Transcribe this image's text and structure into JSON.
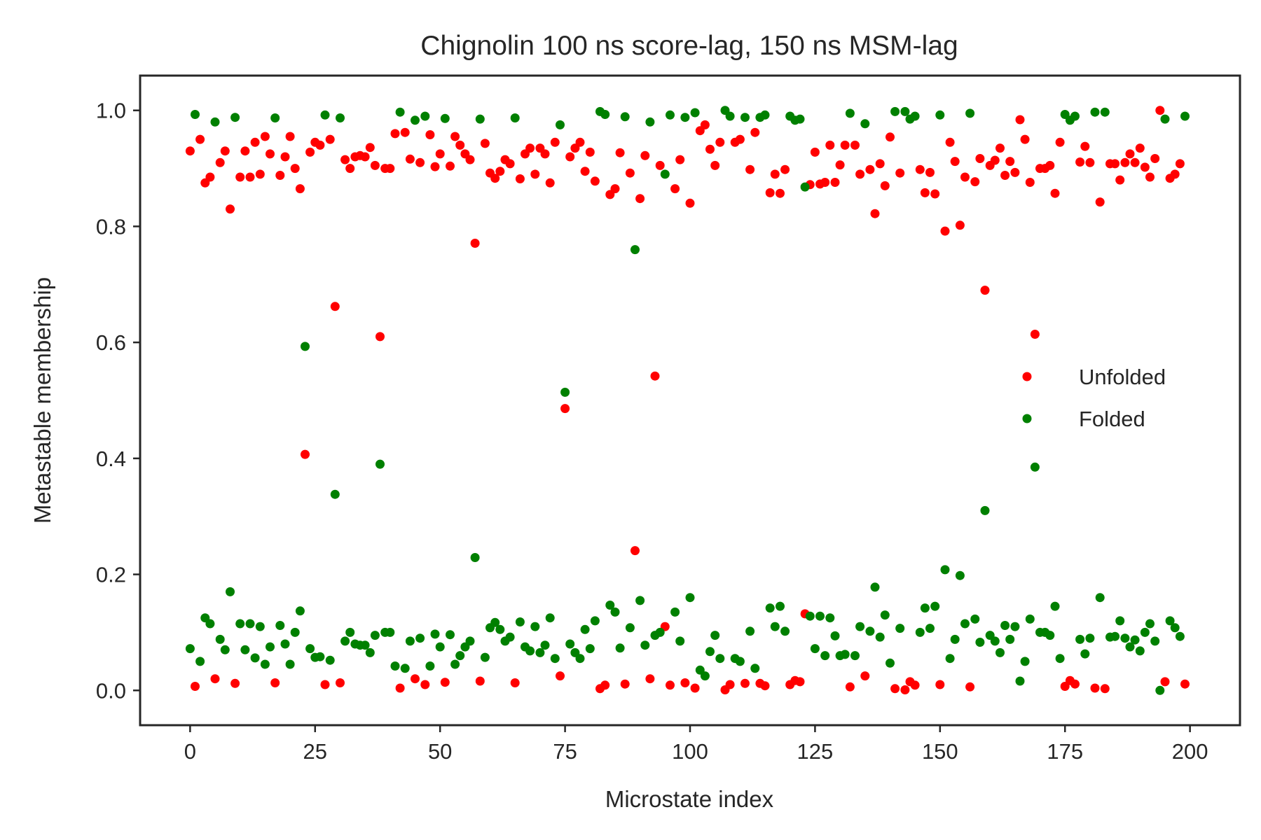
{
  "chart_data": {
    "type": "scatter",
    "title": "Chignolin 100 ns score-lag, 150 ns MSM-lag",
    "xlabel": "Microstate index",
    "ylabel": "Metastable membership",
    "xlim": [
      -10,
      210
    ],
    "ylim": [
      -0.06,
      1.06
    ],
    "xticks": [
      0,
      25,
      50,
      75,
      100,
      125,
      150,
      175,
      200
    ],
    "xtick_labels": [
      "0",
      "25",
      "50",
      "75",
      "100",
      "125",
      "150",
      "175",
      "200"
    ],
    "yticks": [
      0.0,
      0.2,
      0.4,
      0.6,
      0.8,
      1.0
    ],
    "ytick_labels": [
      "0.0",
      "0.2",
      "0.4",
      "0.6",
      "0.8",
      "1.0"
    ],
    "grid": false,
    "legend_position": "center-right",
    "series": [
      {
        "name": "Unfolded",
        "color": "#ff0000",
        "x": [
          0,
          1,
          2,
          3,
          4,
          5,
          6,
          7,
          8,
          9,
          10,
          11,
          12,
          13,
          14,
          15,
          16,
          17,
          18,
          19,
          20,
          21,
          22,
          23,
          24,
          25,
          26,
          27,
          28,
          29,
          30,
          31,
          32,
          33,
          34,
          35,
          36,
          37,
          38,
          39,
          40,
          41,
          42,
          43,
          44,
          45,
          46,
          47,
          48,
          49,
          50,
          51,
          52,
          53,
          54,
          55,
          56,
          57,
          58,
          59,
          60,
          61,
          62,
          63,
          64,
          65,
          66,
          67,
          68,
          69,
          70,
          71,
          72,
          73,
          74,
          75,
          76,
          77,
          78,
          79,
          80,
          81,
          82,
          83,
          84,
          85,
          86,
          87,
          88,
          89,
          90,
          91,
          92,
          93,
          94,
          95,
          96,
          97,
          98,
          99,
          100,
          101,
          102,
          103,
          104,
          105,
          106,
          107,
          108,
          109,
          110,
          111,
          112,
          113,
          114,
          115,
          116,
          117,
          118,
          119,
          120,
          121,
          122,
          123,
          124,
          125,
          126,
          127,
          128,
          129,
          130,
          131,
          132,
          133,
          134,
          135,
          136,
          137,
          138,
          139,
          140,
          141,
          142,
          143,
          144,
          145,
          146,
          147,
          148,
          149,
          150,
          151,
          152,
          153,
          154,
          155,
          156,
          157,
          158,
          159,
          160,
          161,
          162,
          163,
          164,
          165,
          166,
          167,
          168,
          169,
          170,
          171,
          172,
          173,
          174,
          175,
          176,
          177,
          178,
          179,
          180,
          181,
          182,
          183,
          184,
          185,
          186,
          187,
          188,
          189,
          190,
          191,
          192,
          193,
          194,
          195,
          196,
          197,
          198,
          199
        ],
        "y": [
          0.93,
          0.007,
          0.95,
          0.875,
          0.885,
          0.02,
          0.91,
          0.93,
          0.83,
          0.012,
          0.885,
          0.93,
          0.885,
          0.945,
          0.89,
          0.955,
          0.925,
          0.013,
          0.888,
          0.92,
          0.955,
          0.9,
          0.865,
          0.407,
          0.928,
          0.945,
          0.94,
          0.01,
          0.95,
          0.662,
          0.013,
          0.915,
          0.9,
          0.92,
          0.922,
          0.92,
          0.936,
          0.905,
          0.61,
          0.9,
          0.9,
          0.96,
          0.004,
          0.962,
          0.916,
          0.02,
          0.91,
          0.01,
          0.958,
          0.903,
          0.925,
          0.014,
          0.904,
          0.955,
          0.94,
          0.925,
          0.915,
          0.771,
          0.016,
          0.943,
          0.892,
          0.883,
          0.895,
          0.915,
          0.908,
          0.013,
          0.882,
          0.925,
          0.935,
          0.89,
          0.935,
          0.925,
          0.875,
          0.945,
          0.025,
          0.486,
          0.92,
          0.935,
          0.945,
          0.895,
          0.928,
          0.878,
          0.003,
          0.009,
          0.855,
          0.865,
          0.927,
          0.011,
          0.892,
          0.241,
          0.848,
          0.922,
          0.02,
          0.542,
          0.905,
          0.11,
          0.009,
          0.865,
          0.915,
          0.013,
          0.84,
          0.004,
          0.965,
          0.975,
          0.933,
          0.905,
          0.945,
          0.001,
          0.01,
          0.945,
          0.95,
          0.012,
          0.898,
          0.962,
          0.012,
          0.008,
          0.858,
          0.89,
          0.857,
          0.898,
          0.01,
          0.017,
          0.015,
          0.132,
          0.872,
          0.928,
          0.873,
          0.876,
          0.94,
          0.876,
          0.906,
          0.94,
          0.006,
          0.94,
          0.89,
          0.025,
          0.898,
          0.822,
          0.908,
          0.87,
          0.954,
          0.003,
          0.892,
          0.001,
          0.015,
          0.009,
          0.898,
          0.858,
          0.893,
          0.856,
          0.01,
          0.792,
          0.945,
          0.912,
          0.802,
          0.885,
          0.006,
          0.877,
          0.917,
          0.69,
          0.905,
          0.914,
          0.935,
          0.888,
          0.912,
          0.893,
          0.984,
          0.95,
          0.876,
          0.614,
          0.9,
          0.9,
          0.905,
          0.857,
          0.945,
          0.007,
          0.017,
          0.011,
          0.911,
          0.938,
          0.91,
          0.004,
          0.842,
          0.003,
          0.908,
          0.908,
          0.88,
          0.91,
          0.925,
          0.91,
          0.935,
          0.902,
          0.885,
          0.917,
          1.0,
          0.015,
          0.883,
          0.89,
          0.908,
          0.011
        ]
      },
      {
        "name": "Folded",
        "color": "#008000",
        "x": [
          0,
          1,
          2,
          3,
          4,
          5,
          6,
          7,
          8,
          9,
          10,
          11,
          12,
          13,
          14,
          15,
          16,
          17,
          18,
          19,
          20,
          21,
          22,
          23,
          24,
          25,
          26,
          27,
          28,
          29,
          30,
          31,
          32,
          33,
          34,
          35,
          36,
          37,
          38,
          39,
          40,
          41,
          42,
          43,
          44,
          45,
          46,
          47,
          48,
          49,
          50,
          51,
          52,
          53,
          54,
          55,
          56,
          57,
          58,
          59,
          60,
          61,
          62,
          63,
          64,
          65,
          66,
          67,
          68,
          69,
          70,
          71,
          72,
          73,
          74,
          75,
          76,
          77,
          78,
          79,
          80,
          81,
          82,
          83,
          84,
          85,
          86,
          87,
          88,
          89,
          90,
          91,
          92,
          93,
          94,
          95,
          96,
          97,
          98,
          99,
          100,
          101,
          102,
          103,
          104,
          105,
          106,
          107,
          108,
          109,
          110,
          111,
          112,
          113,
          114,
          115,
          116,
          117,
          118,
          119,
          120,
          121,
          122,
          123,
          124,
          125,
          126,
          127,
          128,
          129,
          130,
          131,
          132,
          133,
          134,
          135,
          136,
          137,
          138,
          139,
          140,
          141,
          142,
          143,
          144,
          145,
          146,
          147,
          148,
          149,
          150,
          151,
          152,
          153,
          154,
          155,
          156,
          157,
          158,
          159,
          160,
          161,
          162,
          163,
          164,
          165,
          166,
          167,
          168,
          169,
          170,
          171,
          172,
          173,
          174,
          175,
          176,
          177,
          178,
          179,
          180,
          181,
          182,
          183,
          184,
          185,
          186,
          187,
          188,
          189,
          190,
          191,
          192,
          193,
          194,
          195,
          196,
          197,
          198,
          199
        ],
        "y": [
          0.072,
          0.993,
          0.05,
          0.125,
          0.115,
          0.98,
          0.088,
          0.07,
          0.17,
          0.988,
          0.115,
          0.07,
          0.115,
          0.056,
          0.11,
          0.045,
          0.075,
          0.987,
          0.112,
          0.08,
          0.045,
          0.1,
          0.137,
          0.593,
          0.072,
          0.057,
          0.058,
          0.992,
          0.052,
          0.338,
          0.987,
          0.085,
          0.1,
          0.08,
          0.078,
          0.078,
          0.065,
          0.095,
          0.39,
          0.1,
          0.1,
          0.042,
          0.997,
          0.038,
          0.085,
          0.983,
          0.09,
          0.99,
          0.042,
          0.097,
          0.075,
          0.986,
          0.096,
          0.045,
          0.06,
          0.075,
          0.085,
          0.229,
          0.985,
          0.057,
          0.108,
          0.117,
          0.105,
          0.085,
          0.092,
          0.987,
          0.118,
          0.075,
          0.068,
          0.11,
          0.065,
          0.078,
          0.125,
          0.055,
          0.975,
          0.514,
          0.08,
          0.065,
          0.055,
          0.105,
          0.072,
          0.12,
          0.998,
          0.993,
          0.147,
          0.135,
          0.073,
          0.989,
          0.108,
          0.76,
          0.155,
          0.078,
          0.98,
          0.095,
          0.1,
          0.89,
          0.992,
          0.135,
          0.085,
          0.988,
          0.16,
          0.996,
          0.035,
          0.025,
          0.067,
          0.095,
          0.055,
          1.0,
          0.99,
          0.055,
          0.05,
          0.988,
          0.102,
          0.038,
          0.988,
          0.992,
          0.142,
          0.11,
          0.145,
          0.102,
          0.99,
          0.983,
          0.985,
          0.868,
          0.128,
          0.072,
          0.128,
          0.06,
          0.125,
          0.094,
          0.06,
          0.062,
          0.995,
          0.06,
          0.11,
          0.977,
          0.102,
          0.178,
          0.092,
          0.13,
          0.047,
          0.998,
          0.107,
          0.998,
          0.985,
          0.99,
          0.1,
          0.142,
          0.107,
          0.145,
          0.992,
          0.208,
          0.055,
          0.088,
          0.198,
          0.115,
          0.995,
          0.123,
          0.083,
          0.31,
          0.095,
          0.085,
          0.065,
          0.112,
          0.088,
          0.11,
          0.016,
          0.05,
          0.123,
          0.385,
          0.1,
          0.1,
          0.095,
          0.145,
          0.055,
          0.993,
          0.983,
          0.99,
          0.088,
          0.063,
          0.09,
          0.997,
          0.16,
          0.997,
          0.092,
          0.093,
          0.12,
          0.09,
          0.075,
          0.087,
          0.068,
          0.1,
          0.115,
          0.085,
          0.0,
          0.985,
          0.12,
          0.108,
          0.093,
          0.99
        ]
      }
    ]
  }
}
